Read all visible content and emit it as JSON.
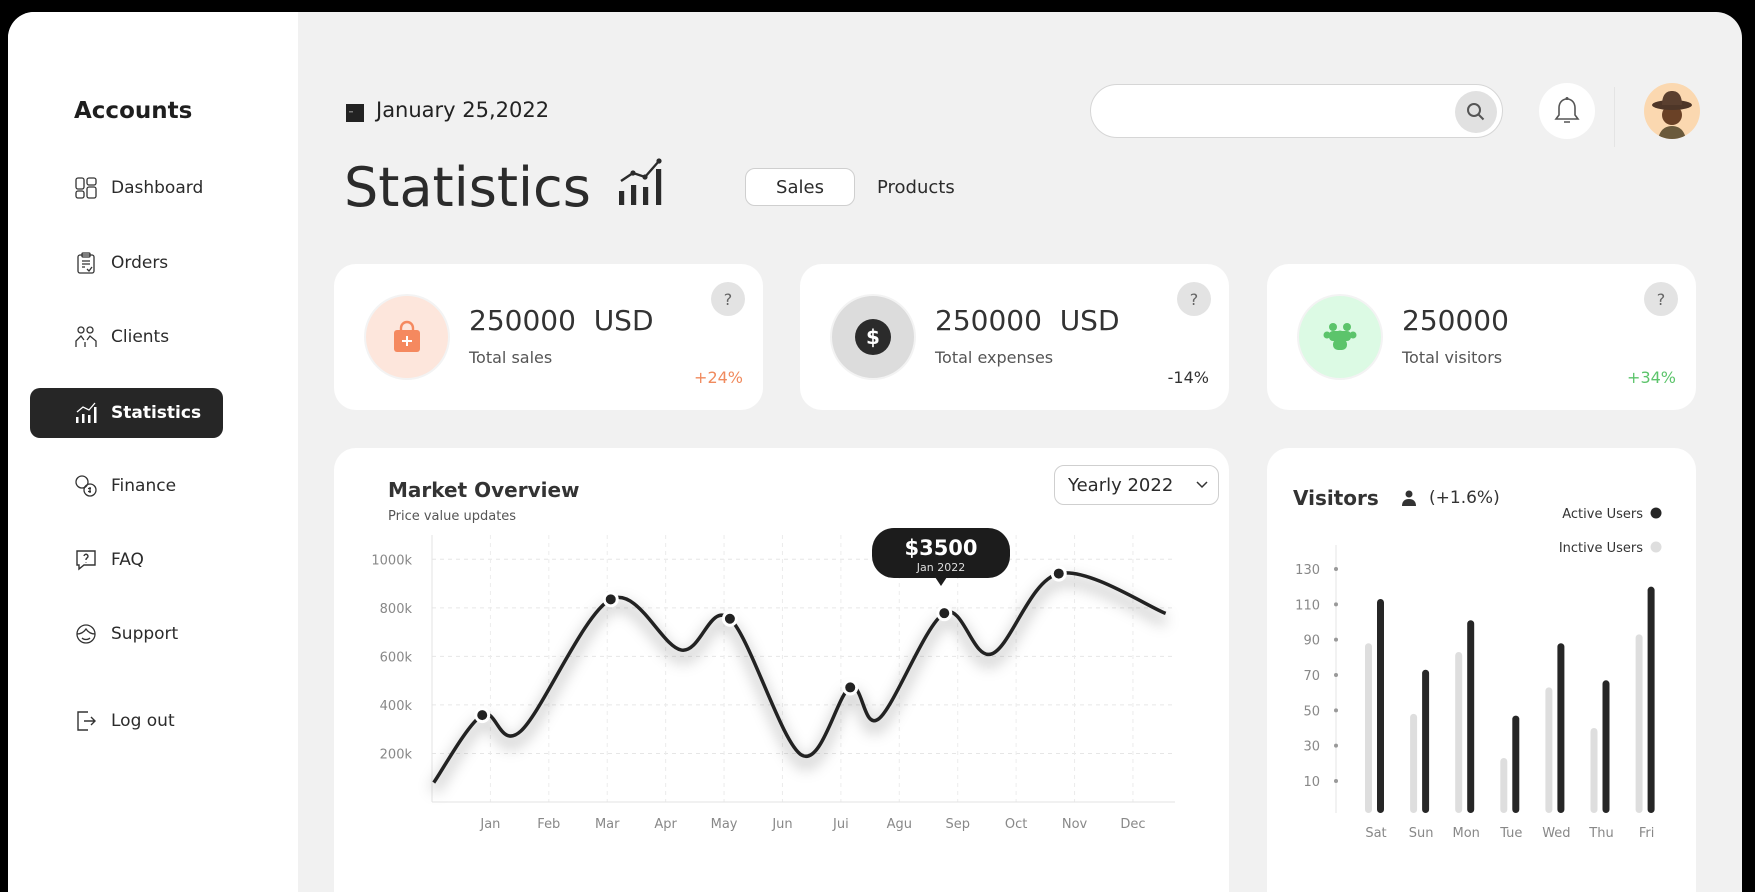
{
  "sidebar": {
    "title": "Accounts",
    "items": [
      {
        "label": "Dashboard",
        "icon": "dashboard-icon"
      },
      {
        "label": "Orders",
        "icon": "clipboard-icon"
      },
      {
        "label": "Clients",
        "icon": "users-icon"
      },
      {
        "label": "Statistics",
        "icon": "chart-icon",
        "active": true
      },
      {
        "label": "Finance",
        "icon": "currency-exchange-icon"
      },
      {
        "label": "FAQ",
        "icon": "question-bubble-icon"
      },
      {
        "label": "Support",
        "icon": "headset-icon"
      },
      {
        "label": "Log out",
        "icon": "logout-icon"
      }
    ]
  },
  "header": {
    "date": "January 25,2022",
    "title": "Statistics",
    "tabs": [
      {
        "label": "Sales",
        "active": true
      },
      {
        "label": "Products"
      }
    ],
    "search_placeholder": ""
  },
  "cards": [
    {
      "value": "250000  USD",
      "label": "Total sales",
      "change": "+24%",
      "change_color": "#f08a5d",
      "icon": "shopping-bag-icon",
      "icon_bg": "#fde6dc",
      "icon_color": "#f5895f"
    },
    {
      "value": "250000  USD",
      "label": "Total expenses",
      "change": "-14%",
      "change_color": "#333333",
      "icon": "dollar-icon",
      "icon_bg": "#dcdcdc",
      "icon_color": "#2b2b2b"
    },
    {
      "value": "250000",
      "label": "Total visitors",
      "change": "+34%",
      "change_color": "#5cc46b",
      "icon": "group-icon",
      "icon_bg": "#dcfae4",
      "icon_color": "#5cc46b"
    }
  ],
  "market": {
    "title": "Market Overview",
    "subtitle": "Price value updates",
    "dropdown": "Yearly 2022",
    "tooltip": {
      "value": "$3500",
      "label": "Jan 2022"
    }
  },
  "visitors": {
    "title": "Visitors",
    "change": "(+1.6%)"
  },
  "chart_data": [
    {
      "type": "line",
      "categories": [
        "Jan",
        "Feb",
        "Mar",
        "Apr",
        "May",
        "Jun",
        "Jui",
        "Agu",
        "Sep",
        "Oct",
        "Nov",
        "Dec"
      ],
      "x_unit": "month (Jan=1)",
      "xlim": [
        0,
        12.72
      ],
      "ylim": [
        0,
        1100
      ],
      "yticks": [
        "200k",
        "400k",
        "600k",
        "800k",
        "1000k"
      ],
      "ytick_values": [
        200,
        400,
        600,
        800,
        1000
      ],
      "grid": true,
      "series": [
        {
          "points": [
            [
              0.03,
              80
            ],
            [
              0.86,
              358
            ],
            [
              1.52,
              292
            ],
            [
              3.06,
              835
            ],
            [
              4.27,
              626
            ],
            [
              5.1,
              755
            ],
            [
              6.33,
              193
            ],
            [
              7.16,
              472
            ],
            [
              7.65,
              343
            ],
            [
              8.77,
              778
            ],
            [
              9.58,
              610
            ],
            [
              10.73,
              941
            ],
            [
              12.56,
              777
            ]
          ],
          "markers": [
            [
              0.86,
              358
            ],
            [
              3.06,
              835
            ],
            [
              5.1,
              755
            ],
            [
              7.16,
              472
            ],
            [
              8.77,
              778
            ],
            [
              10.73,
              941
            ]
          ]
        }
      ],
      "line_color": "#222222"
    },
    {
      "type": "bar",
      "categories": [
        "Sat",
        "Sun",
        "Mon",
        "Tue",
        "Wed",
        "Thu",
        "Fri"
      ],
      "yticks": [
        130,
        110,
        90,
        70,
        50,
        30,
        10
      ],
      "ylim": [
        -8,
        140
      ],
      "legend": "top-right",
      "series": [
        {
          "name": "Active Users",
          "color": "#262626",
          "values": [
            113,
            73,
            101,
            47,
            88,
            67,
            120
          ]
        },
        {
          "name": "Inctive Users",
          "color": "#dedede",
          "values": [
            88,
            48,
            83,
            23,
            63,
            40,
            93
          ]
        }
      ]
    }
  ]
}
